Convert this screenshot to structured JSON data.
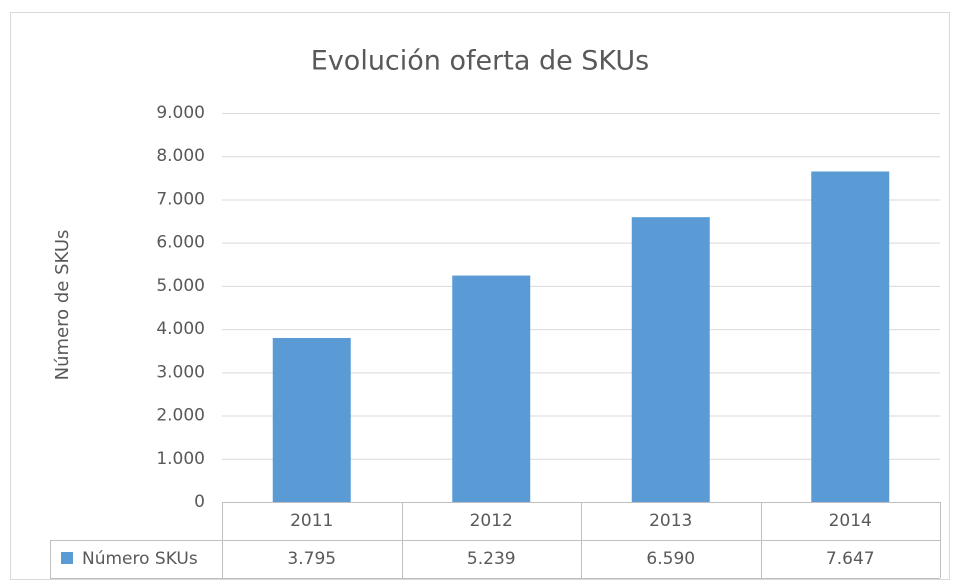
{
  "chart_data": {
    "type": "bar",
    "title": "Evolución oferta de SKUs",
    "y_label": "Número de SKUs",
    "categories": [
      "2011",
      "2012",
      "2013",
      "2014"
    ],
    "series": [
      {
        "name": "Número SKUs",
        "color": "#5b9bd5",
        "values": [
          3795,
          5239,
          6590,
          7647
        ],
        "value_labels": [
          "3.795",
          "5.239",
          "6.590",
          "7.647"
        ]
      }
    ],
    "ylim": [
      0,
      9000
    ],
    "yticks": [
      0,
      {
        "value": 1000,
        "label": "1.000"
      },
      {
        "value": 2000,
        "label": "2.000"
      },
      {
        "value": 3000,
        "label": "3.000"
      },
      {
        "value": 4000,
        "label": "4.000"
      },
      {
        "value": 5000,
        "label": "5.000"
      },
      {
        "value": 6000,
        "label": "6.000"
      },
      {
        "value": 7000,
        "label": "7.000"
      },
      {
        "value": 8000,
        "label": "8.000"
      },
      {
        "value": 9000,
        "label": "9.000"
      }
    ],
    "grid": true,
    "data_table": true
  }
}
